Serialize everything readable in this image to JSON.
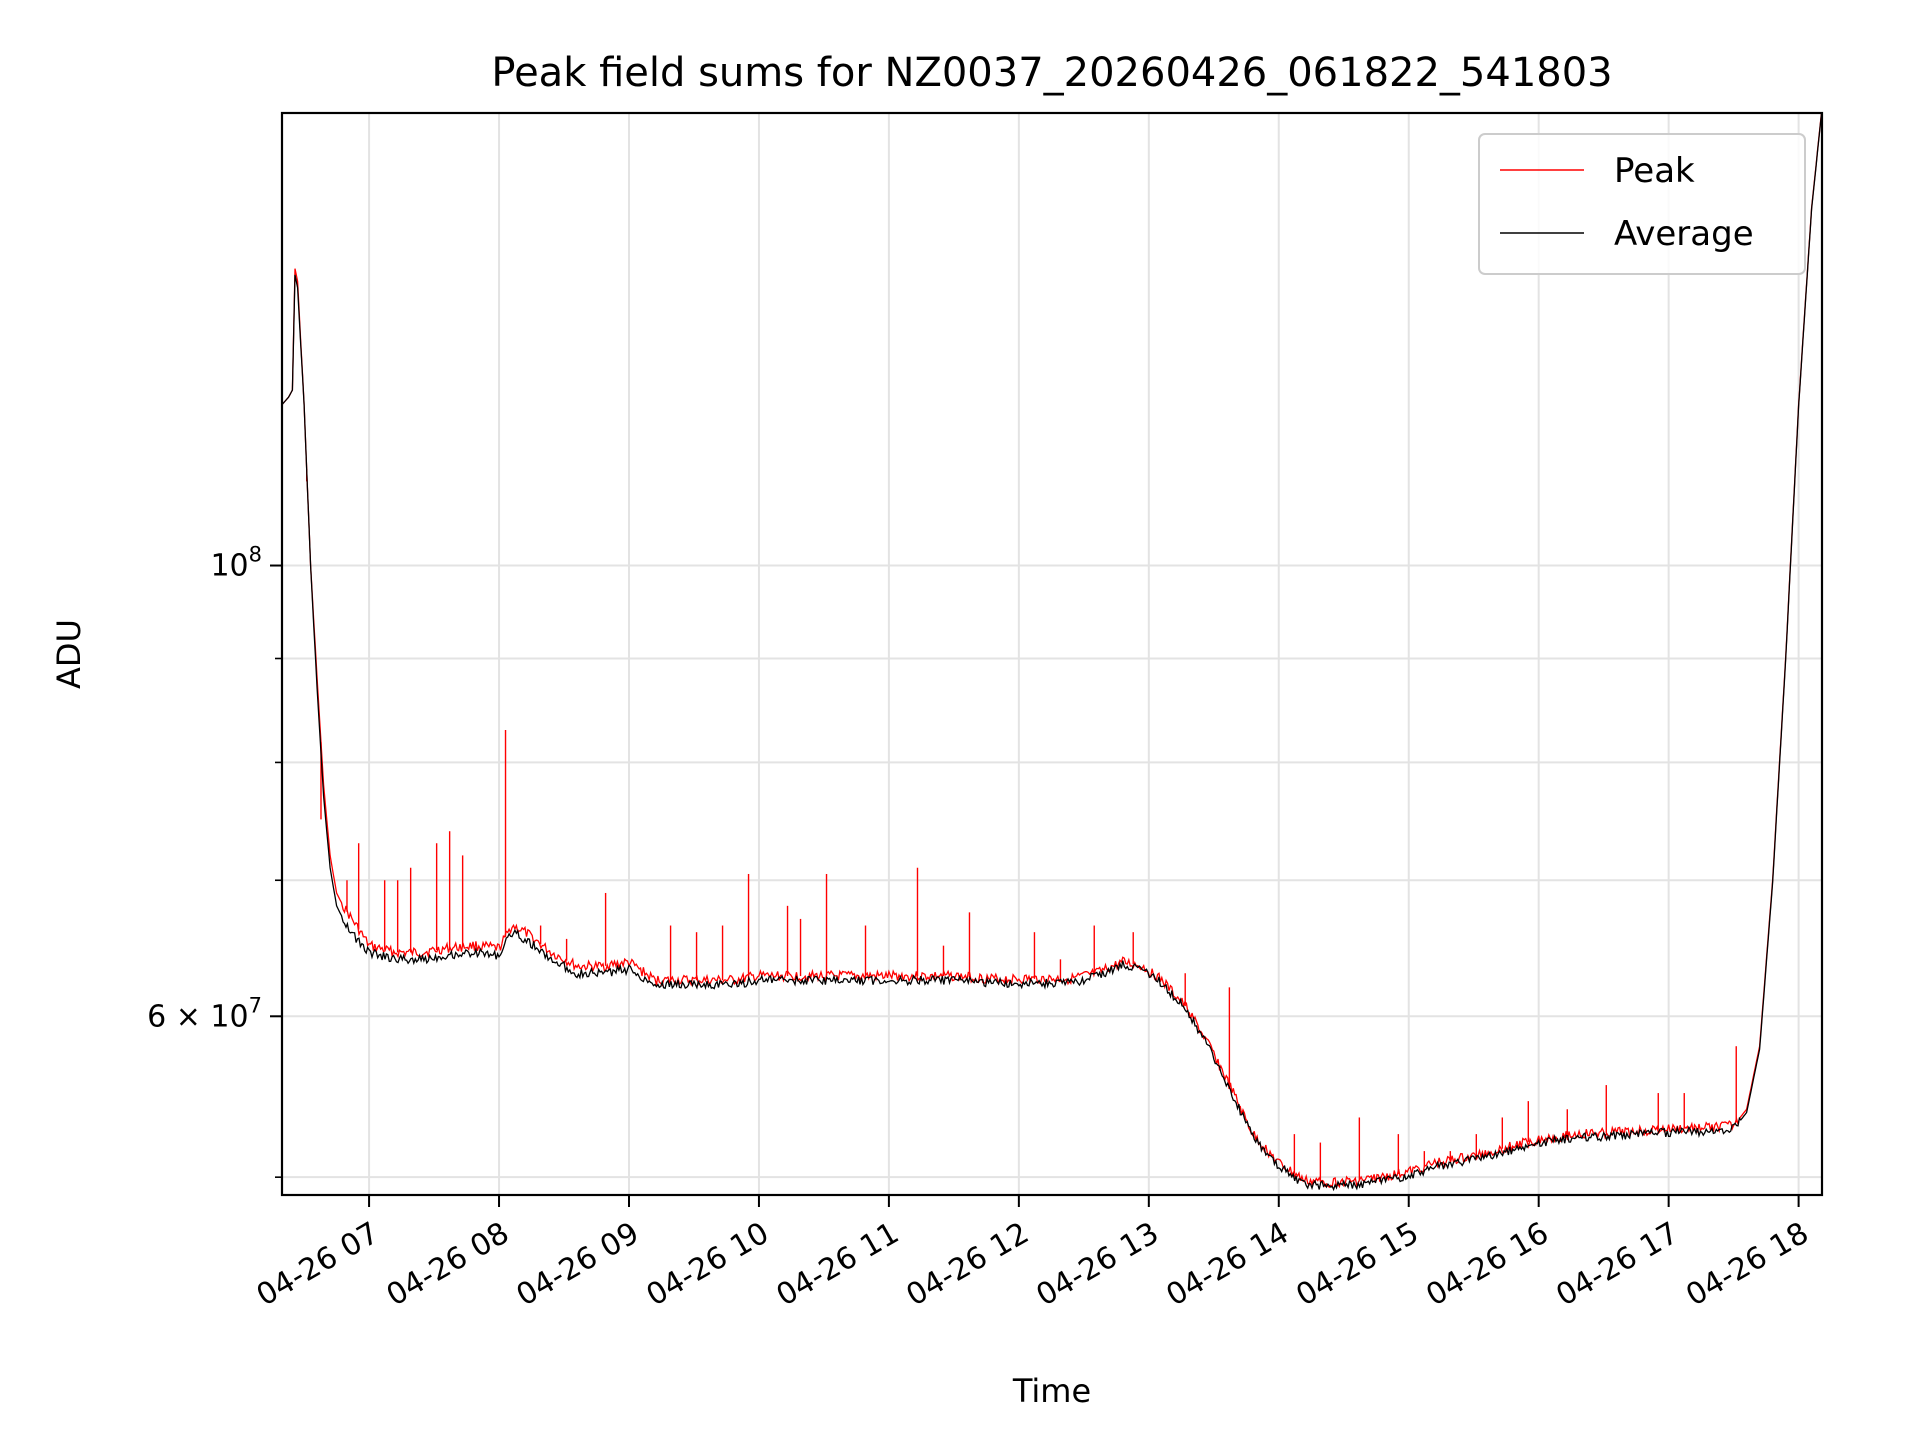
{
  "chart_data": {
    "type": "line",
    "title": "Peak field sums for NZ0037_20260426_061822_541803",
    "xlabel": "Time",
    "ylabel": "ADU",
    "yscale": "log",
    "ylim": [
      49000000,
      167000000
    ],
    "xlim_hours": [
      6.33,
      18.18
    ],
    "x_tick_hours": [
      7,
      8,
      9,
      10,
      11,
      12,
      13,
      14,
      15,
      16,
      17,
      18
    ],
    "x_tick_labels": [
      "04-26 07",
      "04-26 08",
      "04-26 09",
      "04-26 10",
      "04-26 11",
      "04-26 12",
      "04-26 13",
      "04-26 14",
      "04-26 15",
      "04-26 16",
      "04-26 17",
      "04-26 18"
    ],
    "y_major_ticks": [
      {
        "value": 100000000,
        "label_base": "10",
        "label_exp": "8",
        "label_mult": ""
      },
      {
        "value": 60000000,
        "label_base": "10",
        "label_exp": "7",
        "label_mult": "6 × "
      }
    ],
    "y_minor_ticks": [
      50000000,
      70000000,
      80000000,
      90000000
    ],
    "grid": true,
    "legend_position": "upper right",
    "series": [
      {
        "name": "Peak",
        "color": "#ff0000",
        "points": [
          [
            6.33,
            120000000
          ],
          [
            6.38,
            121000000
          ],
          [
            6.41,
            122000000
          ],
          [
            6.43,
            140000000
          ],
          [
            6.45,
            138000000
          ],
          [
            6.5,
            120000000
          ],
          [
            6.55,
            100000000
          ],
          [
            6.6,
            88000000
          ],
          [
            6.65,
            78000000
          ],
          [
            6.7,
            72000000
          ],
          [
            6.75,
            69000000
          ],
          [
            6.8,
            68000000
          ],
          [
            6.9,
            66500000
          ],
          [
            7.0,
            65000000
          ],
          [
            7.2,
            64500000
          ],
          [
            7.4,
            64500000
          ],
          [
            7.6,
            64800000
          ],
          [
            7.8,
            65000000
          ],
          [
            8.0,
            64800000
          ],
          [
            8.1,
            66500000
          ],
          [
            8.2,
            66000000
          ],
          [
            8.4,
            64500000
          ],
          [
            8.6,
            63500000
          ],
          [
            8.8,
            63500000
          ],
          [
            9.0,
            63800000
          ],
          [
            9.2,
            62500000
          ],
          [
            9.5,
            62500000
          ],
          [
            9.8,
            62500000
          ],
          [
            10.0,
            62800000
          ],
          [
            10.3,
            62800000
          ],
          [
            10.6,
            62800000
          ],
          [
            10.9,
            62800000
          ],
          [
            11.2,
            62800000
          ],
          [
            11.5,
            62800000
          ],
          [
            11.8,
            62600000
          ],
          [
            12.1,
            62600000
          ],
          [
            12.4,
            62600000
          ],
          [
            12.6,
            63000000
          ],
          [
            12.8,
            63800000
          ],
          [
            12.95,
            63500000
          ],
          [
            13.1,
            62500000
          ],
          [
            13.3,
            60500000
          ],
          [
            13.5,
            57500000
          ],
          [
            13.65,
            55000000
          ],
          [
            13.8,
            52500000
          ],
          [
            14.0,
            50800000
          ],
          [
            14.2,
            49800000
          ],
          [
            14.4,
            49700000
          ],
          [
            14.6,
            49800000
          ],
          [
            14.8,
            50000000
          ],
          [
            15.0,
            50300000
          ],
          [
            15.2,
            50800000
          ],
          [
            15.5,
            51200000
          ],
          [
            15.8,
            51800000
          ],
          [
            16.0,
            52200000
          ],
          [
            16.3,
            52500000
          ],
          [
            16.6,
            52600000
          ],
          [
            17.0,
            52800000
          ],
          [
            17.3,
            52900000
          ],
          [
            17.5,
            53000000
          ],
          [
            17.6,
            54000000
          ],
          [
            17.7,
            58000000
          ],
          [
            17.8,
            70000000
          ],
          [
            17.9,
            90000000
          ],
          [
            18.0,
            120000000
          ],
          [
            18.1,
            150000000
          ],
          [
            18.18,
            168000000
          ]
        ]
      },
      {
        "name": "Average",
        "color": "#000000",
        "points": [
          [
            6.33,
            120000000
          ],
          [
            6.38,
            121000000
          ],
          [
            6.41,
            122000000
          ],
          [
            6.43,
            139000000
          ],
          [
            6.45,
            137000000
          ],
          [
            6.5,
            120000000
          ],
          [
            6.55,
            100000000
          ],
          [
            6.6,
            87000000
          ],
          [
            6.65,
            77000000
          ],
          [
            6.7,
            71000000
          ],
          [
            6.75,
            68000000
          ],
          [
            6.8,
            67000000
          ],
          [
            6.9,
            65500000
          ],
          [
            7.0,
            64500000
          ],
          [
            7.2,
            64000000
          ],
          [
            7.4,
            64000000
          ],
          [
            7.6,
            64300000
          ],
          [
            7.8,
            64500000
          ],
          [
            8.0,
            64300000
          ],
          [
            8.1,
            66000000
          ],
          [
            8.2,
            65500000
          ],
          [
            8.4,
            64000000
          ],
          [
            8.6,
            63000000
          ],
          [
            8.8,
            63000000
          ],
          [
            9.0,
            63300000
          ],
          [
            9.2,
            62200000
          ],
          [
            9.5,
            62200000
          ],
          [
            9.8,
            62200000
          ],
          [
            10.0,
            62500000
          ],
          [
            10.3,
            62500000
          ],
          [
            10.6,
            62500000
          ],
          [
            10.9,
            62500000
          ],
          [
            11.2,
            62500000
          ],
          [
            11.5,
            62500000
          ],
          [
            11.8,
            62300000
          ],
          [
            12.1,
            62300000
          ],
          [
            12.4,
            62300000
          ],
          [
            12.6,
            62800000
          ],
          [
            12.8,
            63600000
          ],
          [
            12.95,
            63300000
          ],
          [
            13.1,
            62300000
          ],
          [
            13.3,
            60300000
          ],
          [
            13.5,
            57300000
          ],
          [
            13.65,
            54800000
          ],
          [
            13.8,
            52300000
          ],
          [
            14.0,
            50600000
          ],
          [
            14.2,
            49600000
          ],
          [
            14.4,
            49500000
          ],
          [
            14.6,
            49600000
          ],
          [
            14.8,
            49800000
          ],
          [
            15.0,
            50100000
          ],
          [
            15.2,
            50600000
          ],
          [
            15.5,
            51000000
          ],
          [
            15.8,
            51600000
          ],
          [
            16.0,
            52000000
          ],
          [
            16.3,
            52300000
          ],
          [
            16.6,
            52400000
          ],
          [
            17.0,
            52600000
          ],
          [
            17.3,
            52700000
          ],
          [
            17.5,
            52800000
          ],
          [
            17.6,
            53800000
          ],
          [
            17.7,
            57800000
          ],
          [
            17.8,
            69800000
          ],
          [
            17.9,
            89800000
          ],
          [
            18.0,
            119800000
          ],
          [
            18.1,
            149800000
          ],
          [
            18.18,
            167800000
          ]
        ]
      }
    ],
    "peak_spikes": [
      [
        6.52,
        110000000
      ],
      [
        6.63,
        75000000
      ],
      [
        6.83,
        70000000
      ],
      [
        6.92,
        73000000
      ],
      [
        7.12,
        70000000
      ],
      [
        7.22,
        70000000
      ],
      [
        7.32,
        71000000
      ],
      [
        7.52,
        73000000
      ],
      [
        7.62,
        74000000
      ],
      [
        7.72,
        72000000
      ],
      [
        8.05,
        83000000
      ],
      [
        8.32,
        66500000
      ],
      [
        8.52,
        65500000
      ],
      [
        8.82,
        69000000
      ],
      [
        9.32,
        66500000
      ],
      [
        9.52,
        66000000
      ],
      [
        9.72,
        66500000
      ],
      [
        9.92,
        70500000
      ],
      [
        10.22,
        68000000
      ],
      [
        10.32,
        67000000
      ],
      [
        10.52,
        70500000
      ],
      [
        10.82,
        66500000
      ],
      [
        11.22,
        71000000
      ],
      [
        11.42,
        65000000
      ],
      [
        11.62,
        67500000
      ],
      [
        12.12,
        66000000
      ],
      [
        12.32,
        64000000
      ],
      [
        12.58,
        66500000
      ],
      [
        12.88,
        66000000
      ],
      [
        13.28,
        63000000
      ],
      [
        13.62,
        62000000
      ],
      [
        14.12,
        52500000
      ],
      [
        14.32,
        52000000
      ],
      [
        14.62,
        53500000
      ],
      [
        14.92,
        52500000
      ],
      [
        15.12,
        51500000
      ],
      [
        15.32,
        51500000
      ],
      [
        15.52,
        52500000
      ],
      [
        15.72,
        53500000
      ],
      [
        15.92,
        54500000
      ],
      [
        16.22,
        54000000
      ],
      [
        16.52,
        55500000
      ],
      [
        16.92,
        55000000
      ],
      [
        17.12,
        55000000
      ],
      [
        17.52,
        58000000
      ]
    ]
  }
}
